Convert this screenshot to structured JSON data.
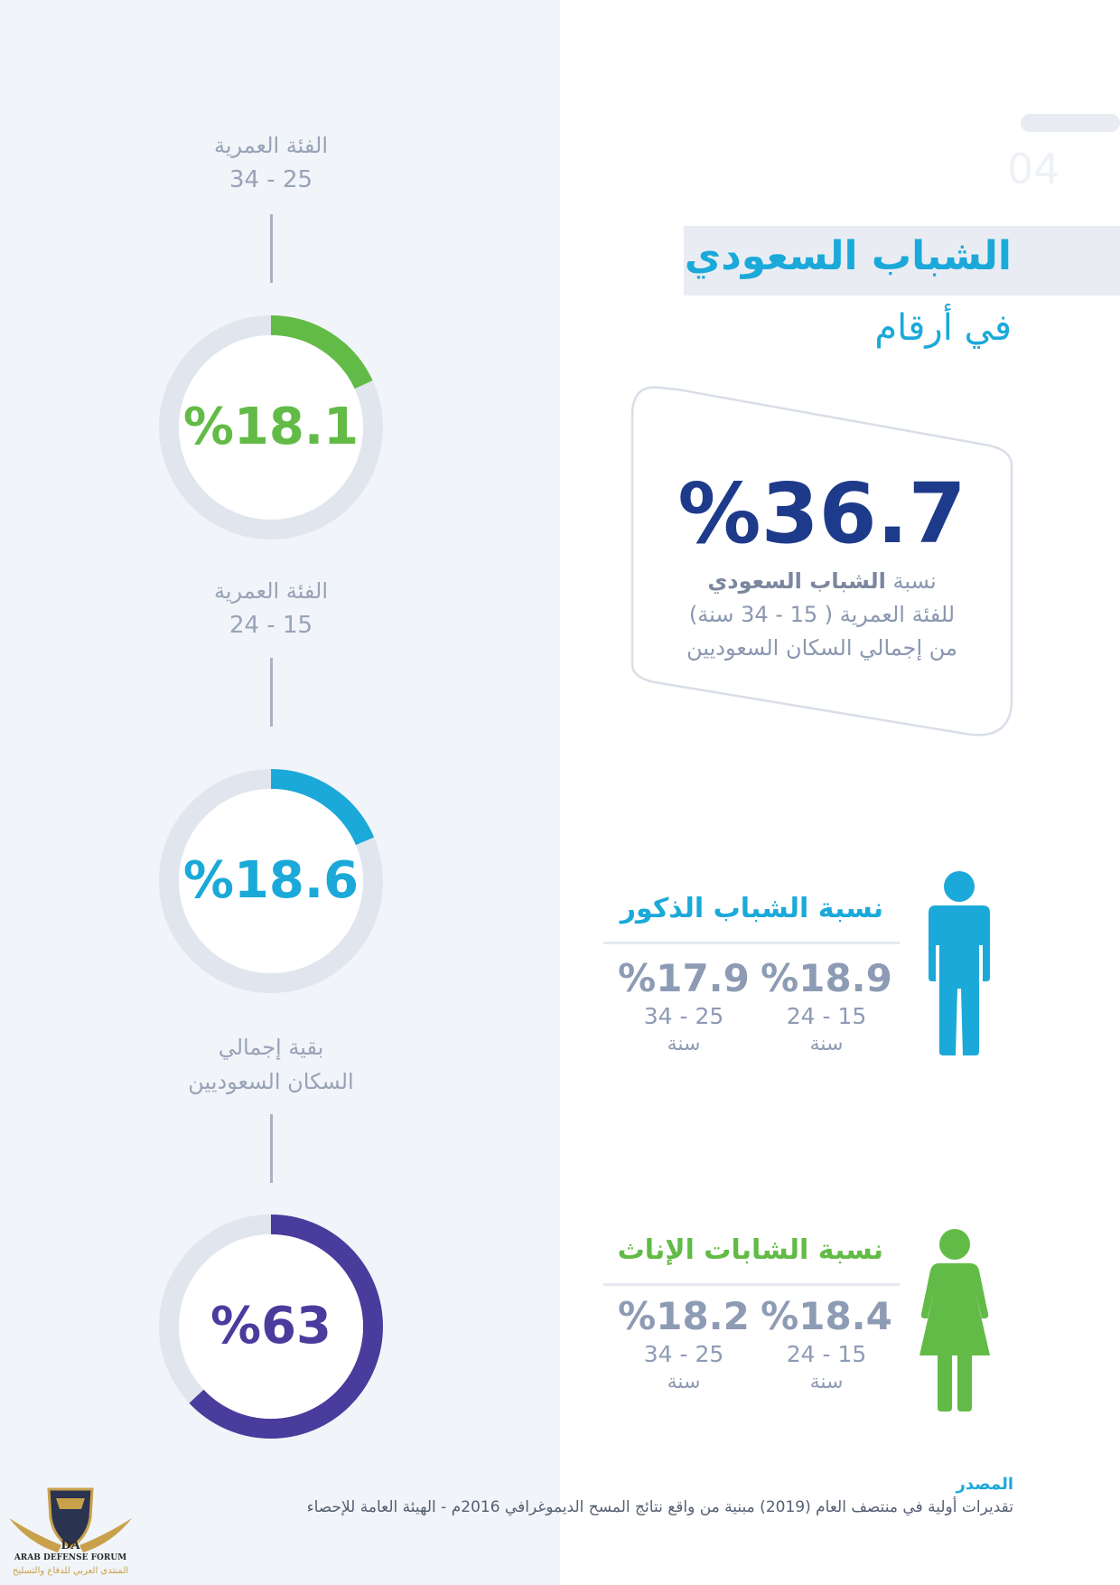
{
  "page_number": "04",
  "header": {
    "title_line1": "الشباب السعودي",
    "title_line2": "في أرقام"
  },
  "summary": {
    "value": "%36.7",
    "desc_prefix": "نسبة",
    "desc_bold": "الشباب السعودي",
    "desc_line2": "للفئة العمرية ( 15 - 34 سنة)",
    "desc_line3": "من إجمالي السكان السعوديين"
  },
  "rings": [
    {
      "label_line1": "الفئة العمرية",
      "label_line2": "34 - 25",
      "value": "%18.1",
      "share": 0.181,
      "color": "#62bb46"
    },
    {
      "label_line1": "الفئة العمرية",
      "label_line2": "24 - 15",
      "value": "%18.6",
      "share": 0.186,
      "color": "#1ba9d9"
    },
    {
      "label_line1": "بقية إجمالي",
      "label_line2": "السكان السعوديين",
      "value": "%63",
      "share": 0.63,
      "color": "#4a3c9c"
    }
  ],
  "males": {
    "title": "نسبة الشباب الذكور",
    "color": "#1ba9d9",
    "icon": "male-person-icon",
    "stats": [
      {
        "value": "%18.9",
        "range": "24 - 15",
        "unit": "سنة"
      },
      {
        "value": "%17.9",
        "range": "34 - 25",
        "unit": "سنة"
      }
    ]
  },
  "females": {
    "title": "نسبة الشابات الإناث",
    "color": "#62bb46",
    "icon": "female-person-icon",
    "stats": [
      {
        "value": "%18.4",
        "range": "24 - 15",
        "unit": "سنة"
      },
      {
        "value": "%18.2",
        "range": "34 - 25",
        "unit": "سنة"
      }
    ]
  },
  "source": {
    "heading": "المصدر",
    "text": "تقديرات أولية في منتصف العام (2019) مبنية من واقع نتائج المسح الديموغرافي 2016م - الهيئة العامة للإحصاء"
  },
  "logo": {
    "mark": "DA",
    "name_en": "ARAB DEFENSE FORUM",
    "name_ar": "المنتدى العربي للدفاع والتسليح"
  },
  "colors": {
    "ring_track": "#e1e6ee",
    "navy": "#1e3a8a",
    "panel": "#f1f4f8"
  }
}
